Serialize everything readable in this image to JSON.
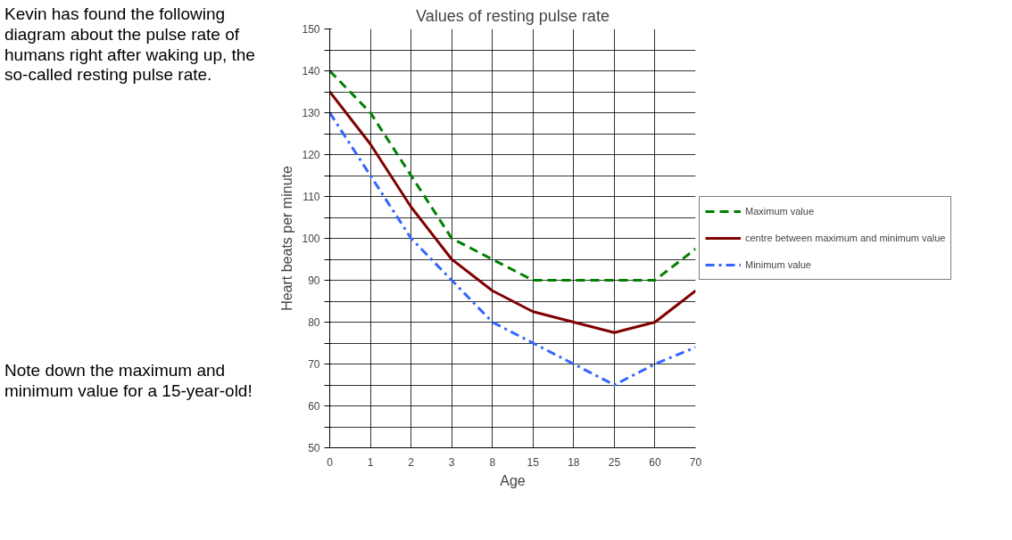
{
  "chart_data": {
    "type": "line",
    "title": "Values of resting pulse rate",
    "xlabel": "Age",
    "ylabel": "Heart beats per minute",
    "annotations": [
      "Kevin has found the following diagram about the pulse rate of humans right after waking up, the so-called resting pulse rate.",
      "Note down the maximum and minimum value for a 15-year-old!"
    ],
    "categories": [
      "0",
      "1",
      "2",
      "3",
      "8",
      "15",
      "18",
      "25",
      "60",
      "70"
    ],
    "series": [
      {
        "name": "Maximum value",
        "color": "#008000",
        "line_style": "dashed",
        "values": [
          140,
          130,
          115,
          100,
          95,
          90,
          90,
          90,
          90,
          97.5
        ]
      },
      {
        "name": "centre between maximum and minimum value",
        "color": "#800000",
        "line_style": "solid",
        "values": [
          135,
          122.5,
          107.5,
          95,
          87.5,
          82.5,
          80,
          77.5,
          80,
          87.5
        ]
      },
      {
        "name": "Minimum value",
        "color": "#3366ff",
        "line_style": "dashdot",
        "values": [
          130,
          115,
          100,
          90,
          80,
          75,
          70,
          65,
          70,
          74
        ]
      }
    ],
    "ylim": [
      50,
      150
    ],
    "yticks": [
      50,
      {
        "value": 55,
        "label": null
      },
      60,
      {
        "value": 65,
        "label": null
      },
      70,
      {
        "value": 75,
        "label": null
      },
      80,
      {
        "value": 85,
        "label": null
      },
      90,
      {
        "value": 95,
        "label": null
      },
      100,
      {
        "value": 105,
        "label": null
      },
      110,
      {
        "value": 115,
        "label": null
      },
      120,
      {
        "value": 125,
        "label": null
      },
      130,
      {
        "value": 135,
        "label": null
      },
      140,
      {
        "value": 145,
        "label": null
      },
      150
    ],
    "grid": true,
    "legend": "right",
    "marker": "none"
  }
}
